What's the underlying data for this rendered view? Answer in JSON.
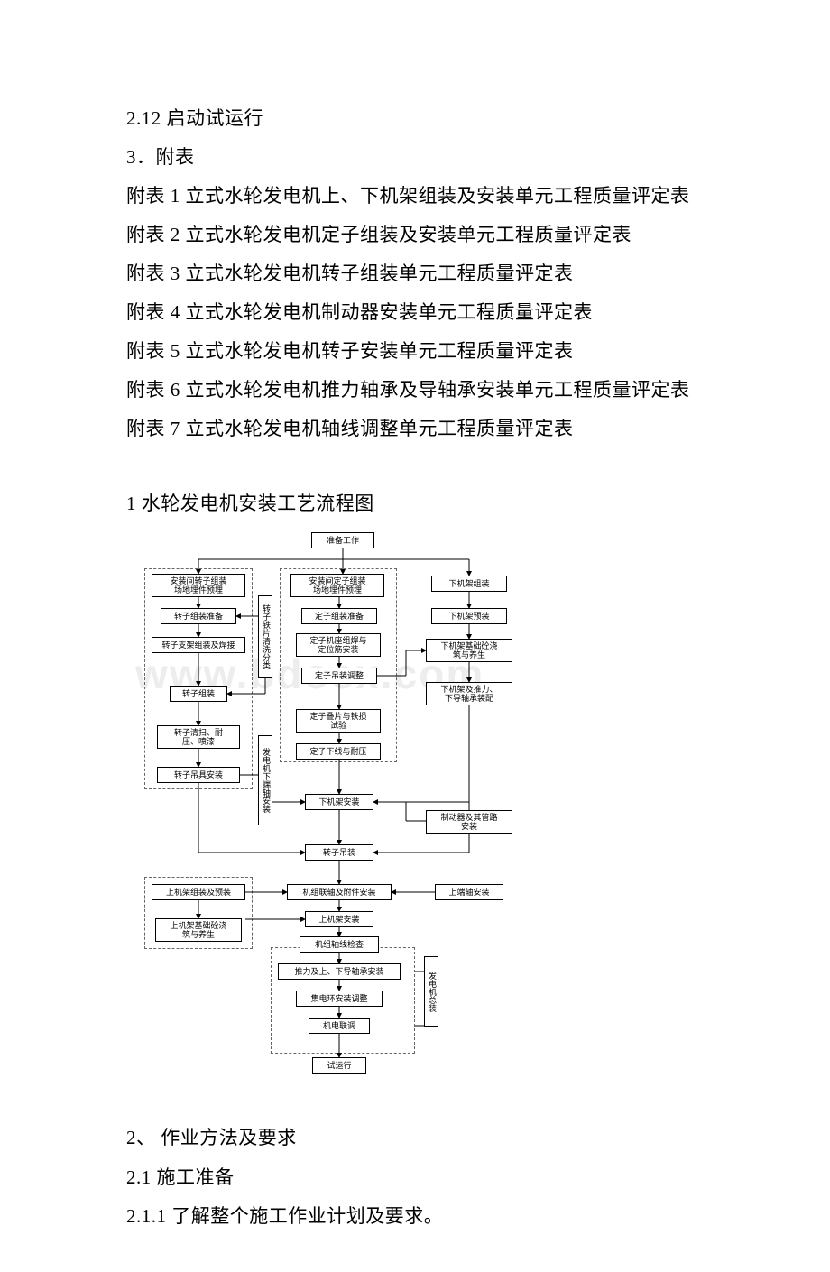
{
  "lines": {
    "l1": "2.12 启动试运行",
    "l2": "3．附表",
    "l3": "附表 1 立式水轮发电机上、下机架组装及安装单元工程质量评定表",
    "l4": "附表 2 立式水轮发电机定子组装及安装单元工程质量评定表",
    "l5": "附表 3 立式水轮发电机转子组装单元工程质量评定表",
    "l6": "附表 4 立式水轮发电机制动器安装单元工程质量评定表",
    "l7": "附表 5 立式水轮发电机转子安装单元工程质量评定表",
    "l8": "附表 6 立式水轮发电机推力轴承及导轴承安装单元工程质量评定表",
    "l9": "附表 7 立式水轮发电机轴线调整单元工程质量评定表",
    "l10": "1 水轮发电机安装工艺流程图",
    "l11": "2、 作业方法及要求",
    "l12": "2.1 施工准备",
    "l13": "2.1.1 了解整个施工作业计划及要求。"
  },
  "watermark": "www.bdocx.com",
  "flow": {
    "n_prep": "准备工作",
    "col1": {
      "a": "安装间转子组装\n场地埋件预埋",
      "b": "转子组装准备",
      "c": "转子支架组装及焊接",
      "d": "转子组装",
      "e": "转子清扫、耐\n压、喷漆",
      "f": "转子吊具安装"
    },
    "col2": {
      "a": "安装间定子组装\n场地埋件预埋",
      "b": "定子组装准备",
      "c": "定子机座组焊与\n定位筋安装",
      "d": "定子吊装调整",
      "e": "定子叠片与铁损\n试验",
      "f": "定子下线与耐压",
      "g": "下机架安装",
      "h": "转子吊装",
      "i": "机组联轴及附件安装",
      "j": "上机架安装",
      "k": "机组轴线检查",
      "l": "推力及上、下导轴承安装",
      "m": "集电环安装调整",
      "n": "机电联调",
      "o": "试运行"
    },
    "col3": {
      "a": "下机架组装",
      "b": "下机架预装",
      "c": "下机架基础砼浇\n筑与养生",
      "d": "下机架及推力、\n下导轴承装配",
      "e": "制动器及其管路\n安装",
      "f": "上端轴安装"
    },
    "left2": {
      "a": "上机架组装及预装",
      "b": "上机架基础砼浇\n筑与养生"
    },
    "vlabel1": "转子铁片清洗分类",
    "vlabel2": "发电机下端轴安装",
    "vlabel3": "发电机总装"
  },
  "colors": {
    "text": "#000000",
    "bg": "#ffffff",
    "watermark": "#ededed",
    "border": "#000000",
    "dashed": "#666666"
  }
}
